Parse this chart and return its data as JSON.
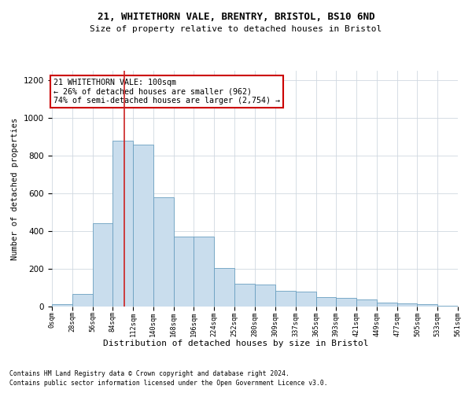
{
  "title": "21, WHITETHORN VALE, BRENTRY, BRISTOL, BS10 6ND",
  "subtitle": "Size of property relative to detached houses in Bristol",
  "xlabel": "Distribution of detached houses by size in Bristol",
  "ylabel": "Number of detached properties",
  "bar_color": "#c9dded",
  "bar_edge_color": "#6a9fc0",
  "background_color": "#ffffff",
  "grid_color": "#d0d8e0",
  "vline_color": "#cc2222",
  "annotation_box_edge": "#cc0000",
  "annotation_text": "21 WHITETHORN VALE: 100sqm\n← 26% of detached houses are smaller (962)\n74% of semi-detached houses are larger (2,754) →",
  "property_line_x": 100,
  "ylim": [
    0,
    1250
  ],
  "yticks": [
    0,
    200,
    400,
    600,
    800,
    1000,
    1200
  ],
  "bin_edges": [
    0,
    28,
    56,
    84,
    112,
    140,
    168,
    196,
    224,
    252,
    280,
    309,
    337,
    365,
    393,
    421,
    449,
    477,
    505,
    533,
    561
  ],
  "bin_labels": [
    "0sqm",
    "28sqm",
    "56sqm",
    "84sqm",
    "112sqm",
    "140sqm",
    "168sqm",
    "196sqm",
    "224sqm",
    "252sqm",
    "280sqm",
    "309sqm",
    "337sqm",
    "365sqm",
    "393sqm",
    "421sqm",
    "449sqm",
    "477sqm",
    "505sqm",
    "533sqm",
    "561sqm"
  ],
  "bar_heights": [
    12,
    65,
    440,
    880,
    860,
    580,
    370,
    370,
    205,
    120,
    115,
    85,
    80,
    50,
    45,
    38,
    22,
    16,
    12,
    5,
    2
  ],
  "footnote1": "Contains HM Land Registry data © Crown copyright and database right 2024.",
  "footnote2": "Contains public sector information licensed under the Open Government Licence v3.0."
}
